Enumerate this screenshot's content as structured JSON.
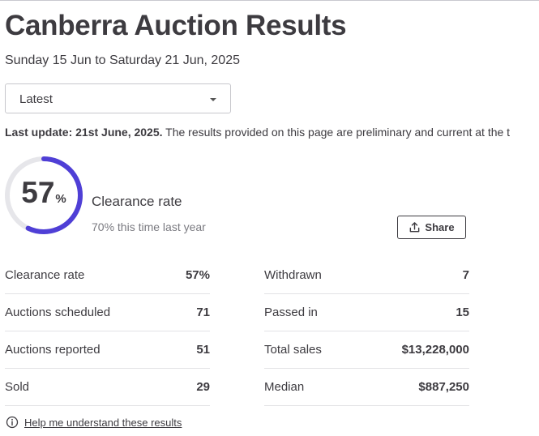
{
  "header": {
    "title": "Canberra Auction Results",
    "date_range": "Sunday 15 Jun to Saturday 21 Jun, 2025"
  },
  "period_select": {
    "value": "Latest"
  },
  "last_update": {
    "bold": "Last update: 21st June, 2025.",
    "text": " The results provided on this page are preliminary and current at the t"
  },
  "clearance": {
    "value": "57",
    "unit": "%",
    "rate_fraction": 0.57,
    "label": "Clearance rate",
    "last_year": "70% this time last year",
    "ring_color": "#4f3fd6",
    "track_color": "#e6e6ea"
  },
  "share_button": {
    "label": "Share",
    "icon": "share-upload-icon"
  },
  "stats_left": [
    {
      "label": "Clearance rate",
      "value": "57%"
    },
    {
      "label": "Auctions scheduled",
      "value": "71"
    },
    {
      "label": "Auctions reported",
      "value": "51"
    },
    {
      "label": "Sold",
      "value": "29"
    }
  ],
  "stats_right": [
    {
      "label": "Withdrawn",
      "value": "7"
    },
    {
      "label": "Passed in",
      "value": "15"
    },
    {
      "label": "Total sales",
      "value": "$13,228,000"
    },
    {
      "label": "Median",
      "value": "$887,250"
    }
  ],
  "help": {
    "label": "Help me understand these results",
    "icon": "info-icon"
  }
}
